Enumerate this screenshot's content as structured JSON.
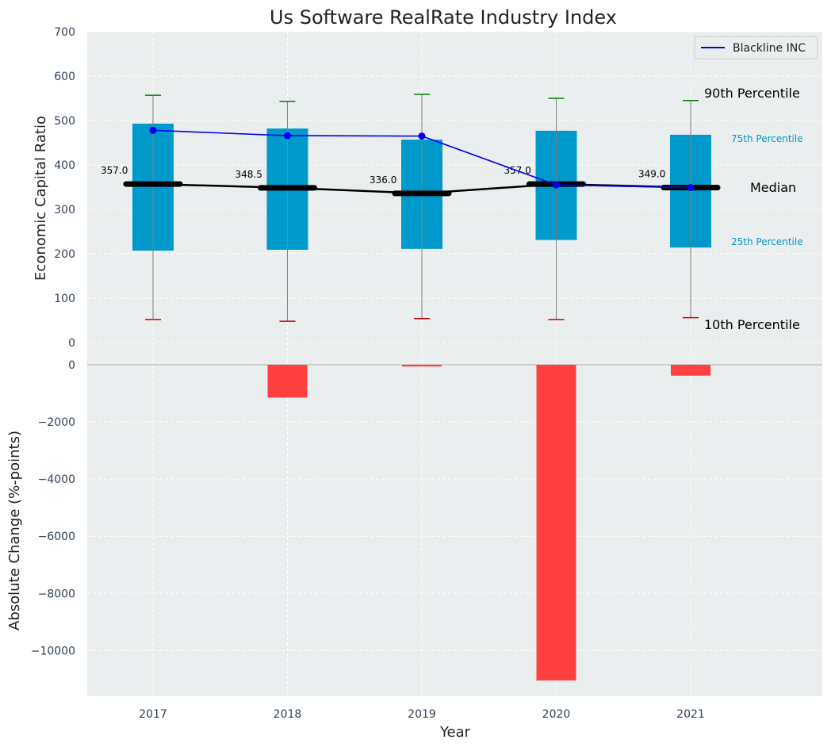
{
  "colors": {
    "box": "#0099cc",
    "median": "#000000",
    "whisker": "#808080",
    "cap_high": "#008000",
    "cap_low": "#cc0000",
    "company_line": "#0000ee",
    "change_bar": "#ff4040",
    "plot_bg": "#ebeeee",
    "grid": "#ffffff"
  },
  "chart_data": [
    {
      "type": "box",
      "title": "Us Software RealRate Industry Index",
      "xlabel": "",
      "ylabel": "Economic Capital Ratio",
      "ylim": [
        0,
        700
      ],
      "yticks": [
        "0",
        "100",
        "200",
        "300",
        "400",
        "500",
        "600",
        "700"
      ],
      "categories": [
        "2017",
        "2018",
        "2019",
        "2020",
        "2021"
      ],
      "p10": [
        52,
        48,
        54,
        52,
        56
      ],
      "p25": [
        207,
        209,
        211,
        231,
        214
      ],
      "median": [
        357.0,
        348.5,
        336.0,
        357.0,
        349.0
      ],
      "median_labels": [
        "357.0",
        "348.5",
        "336.0",
        "357.0",
        "349.0"
      ],
      "p75": [
        493,
        482,
        457,
        477,
        468
      ],
      "p90": [
        557,
        543,
        559,
        550,
        545
      ],
      "series": [
        {
          "name": "Blackline INC",
          "values": [
            478,
            466,
            465,
            355,
            349
          ]
        }
      ],
      "annotations": {
        "p90": "90th Percentile",
        "p75": "75th Percentile",
        "median": "Median",
        "p25": "25th Percentile",
        "p10": "10th Percentile"
      },
      "legend": "top-right",
      "grid": true
    },
    {
      "type": "bar",
      "xlabel": "Year",
      "ylabel": "Absolute Change (%-points)",
      "ylim": [
        -11600,
        0
      ],
      "yticks": [
        "0",
        "−2000",
        "−4000",
        "−6000",
        "−8000",
        "−10000"
      ],
      "categories": [
        "2017",
        "2018",
        "2019",
        "2020",
        "2021"
      ],
      "values": [
        0,
        -1150,
        -60,
        -11050,
        -380
      ],
      "grid": true
    }
  ]
}
